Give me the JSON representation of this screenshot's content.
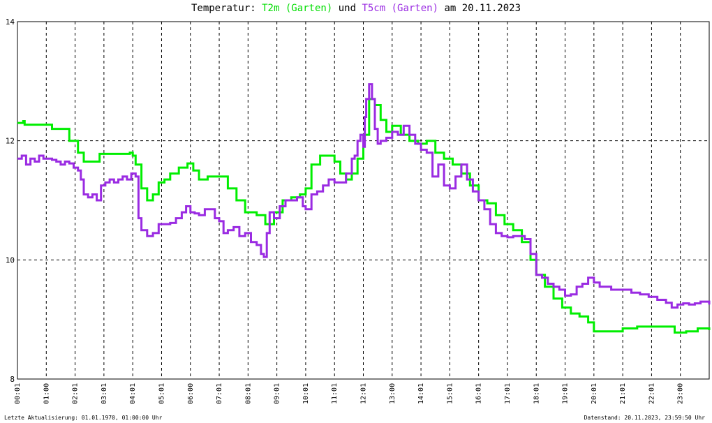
{
  "title": {
    "prefix": "Temperatur: ",
    "series1": "T2m (Garten)",
    "connector": " und ",
    "series2": "T5cm (Garten)",
    "suffix": " am 20.11.2023"
  },
  "footer": {
    "left": "Letzte Aktualisierung: 01.01.1970, 01:00:00 Uhr",
    "right": "Datenstand: 20.11.2023, 23:59:50 Uhr"
  },
  "chart_data": {
    "type": "line",
    "ylim": [
      8,
      14
    ],
    "yticks": [
      "8",
      "10",
      "12",
      "14"
    ],
    "xlim": [
      0,
      24
    ],
    "xtick_labels": [
      "00:01",
      "01:00",
      "02:01",
      "03:01",
      "04:01",
      "05:01",
      "06:00",
      "07:01",
      "08:01",
      "09:01",
      "10:01",
      "11:01",
      "12:01",
      "13:00",
      "14:01",
      "15:01",
      "16:01",
      "17:01",
      "18:01",
      "19:01",
      "20:01",
      "21:01",
      "22:01",
      "23:00"
    ],
    "grid": true,
    "series": [
      {
        "name": "T2m (Garten)",
        "color": "#00ee00",
        "x": [
          0,
          0.2,
          0.25,
          1.0,
          1.2,
          1.5,
          1.8,
          2.1,
          2.3,
          2.7,
          2.85,
          3.3,
          3.6,
          3.9,
          4.0,
          4.1,
          4.3,
          4.5,
          4.7,
          4.9,
          5.1,
          5.3,
          5.6,
          5.9,
          6.1,
          6.3,
          6.6,
          7.0,
          7.3,
          7.6,
          7.9,
          8.3,
          8.6,
          8.9,
          9.2,
          9.5,
          9.8,
          10.0,
          10.2,
          10.5,
          10.7,
          11.0,
          11.2,
          11.4,
          11.6,
          11.8,
          12.0,
          12.2,
          12.4,
          12.6,
          12.8,
          13.0,
          13.3,
          13.6,
          13.9,
          14.2,
          14.5,
          14.8,
          15.1,
          15.4,
          15.7,
          16.0,
          16.3,
          16.6,
          16.9,
          17.2,
          17.5,
          17.8,
          18.0,
          18.3,
          18.6,
          18.9,
          19.2,
          19.5,
          19.8,
          20.0,
          20.5,
          21.0,
          21.5,
          22.0,
          22.5,
          22.8,
          23.2,
          23.6,
          24.0
        ],
        "y": [
          12.3,
          12.33,
          12.27,
          12.27,
          12.2,
          12.2,
          12.0,
          11.8,
          11.65,
          11.65,
          11.78,
          11.78,
          11.78,
          11.8,
          11.75,
          11.6,
          11.2,
          11.0,
          11.1,
          11.3,
          11.35,
          11.45,
          11.55,
          11.62,
          11.5,
          11.35,
          11.4,
          11.4,
          11.2,
          11.0,
          10.8,
          10.75,
          10.6,
          10.8,
          11.0,
          11.05,
          11.1,
          11.2,
          11.6,
          11.75,
          11.75,
          11.65,
          11.45,
          11.35,
          11.45,
          11.7,
          12.1,
          12.7,
          12.6,
          12.35,
          12.15,
          12.25,
          12.1,
          12.0,
          11.95,
          12.0,
          11.8,
          11.7,
          11.6,
          11.45,
          11.25,
          11.0,
          10.95,
          10.75,
          10.6,
          10.5,
          10.3,
          10.0,
          9.75,
          9.55,
          9.35,
          9.2,
          9.1,
          9.05,
          8.95,
          8.8,
          8.8,
          8.85,
          8.88,
          8.88,
          8.88,
          8.78,
          8.8,
          8.85,
          8.82
        ]
      },
      {
        "name": "T5cm (Garten)",
        "color": "#9a2be2",
        "x": [
          0,
          0.15,
          0.3,
          0.45,
          0.6,
          0.75,
          0.9,
          1.05,
          1.2,
          1.35,
          1.5,
          1.65,
          1.8,
          1.95,
          2.1,
          2.2,
          2.3,
          2.45,
          2.6,
          2.75,
          2.9,
          3.05,
          3.2,
          3.35,
          3.5,
          3.65,
          3.8,
          3.95,
          4.05,
          4.1,
          4.2,
          4.3,
          4.5,
          4.7,
          4.9,
          5.1,
          5.3,
          5.5,
          5.7,
          5.85,
          6.0,
          6.15,
          6.3,
          6.5,
          6.7,
          6.85,
          7.0,
          7.15,
          7.3,
          7.5,
          7.7,
          7.9,
          8.1,
          8.3,
          8.45,
          8.55,
          8.65,
          8.75,
          8.9,
          9.1,
          9.3,
          9.5,
          9.7,
          9.9,
          10.0,
          10.2,
          10.4,
          10.6,
          10.8,
          11.0,
          11.2,
          11.4,
          11.6,
          11.7,
          11.8,
          11.9,
          12.0,
          12.05,
          12.1,
          12.2,
          12.3,
          12.4,
          12.5,
          12.6,
          12.8,
          13.0,
          13.2,
          13.4,
          13.6,
          13.8,
          14.0,
          14.2,
          14.4,
          14.6,
          14.8,
          15.0,
          15.2,
          15.4,
          15.6,
          15.8,
          16.0,
          16.2,
          16.4,
          16.6,
          16.8,
          17.0,
          17.2,
          17.4,
          17.6,
          17.8,
          18.0,
          18.2,
          18.4,
          18.6,
          18.8,
          19.0,
          19.2,
          19.4,
          19.6,
          19.8,
          20.0,
          20.2,
          20.4,
          20.6,
          20.8,
          21.0,
          21.3,
          21.6,
          21.9,
          22.2,
          22.5,
          22.7,
          22.9,
          23.1,
          23.3,
          23.5,
          23.7,
          24.0
        ],
        "y": [
          11.7,
          11.75,
          11.6,
          11.7,
          11.65,
          11.75,
          11.7,
          11.7,
          11.68,
          11.65,
          11.6,
          11.65,
          11.62,
          11.55,
          11.5,
          11.35,
          11.1,
          11.05,
          11.1,
          11.0,
          11.25,
          11.3,
          11.35,
          11.3,
          11.35,
          11.4,
          11.35,
          11.45,
          11.45,
          11.4,
          10.7,
          10.5,
          10.4,
          10.45,
          10.6,
          10.6,
          10.62,
          10.7,
          10.8,
          10.9,
          10.8,
          10.78,
          10.75,
          10.85,
          10.85,
          10.7,
          10.65,
          10.45,
          10.5,
          10.55,
          10.4,
          10.45,
          10.3,
          10.25,
          10.1,
          10.05,
          10.45,
          10.8,
          10.7,
          10.9,
          11.0,
          11.0,
          11.05,
          10.9,
          10.85,
          11.1,
          11.15,
          11.25,
          11.35,
          11.3,
          11.3,
          11.45,
          11.7,
          11.75,
          12.0,
          12.1,
          11.9,
          12.4,
          12.7,
          12.95,
          12.7,
          12.2,
          11.95,
          12.0,
          12.05,
          12.15,
          12.1,
          12.25,
          12.1,
          11.95,
          11.85,
          11.8,
          11.4,
          11.6,
          11.25,
          11.2,
          11.4,
          11.6,
          11.35,
          11.15,
          11.0,
          10.85,
          10.6,
          10.45,
          10.4,
          10.38,
          10.4,
          10.4,
          10.35,
          10.1,
          9.75,
          9.7,
          9.6,
          9.55,
          9.5,
          9.4,
          9.42,
          9.55,
          9.6,
          9.7,
          9.62,
          9.55,
          9.55,
          9.5,
          9.5,
          9.5,
          9.45,
          9.42,
          9.38,
          9.33,
          9.28,
          9.2,
          9.25,
          9.27,
          9.25,
          9.27,
          9.3,
          9.25
        ]
      }
    ]
  }
}
